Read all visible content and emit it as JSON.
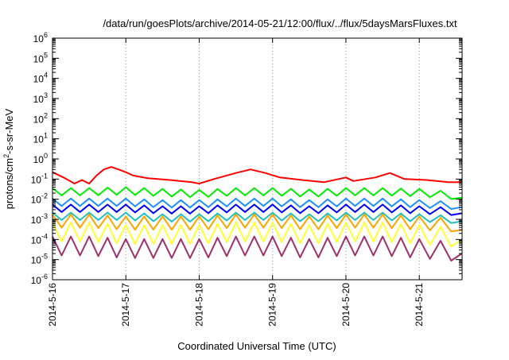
{
  "chart_data": {
    "type": "line",
    "title": "/data/run/goesPlots/archive/2014-05-21/12:00/flux/../flux/5daysMarsFluxes.txt",
    "xlabel": "Coordinated Universal Time (UTC)",
    "ylabel_prefix": "protons/cm",
    "ylabel_sup": "2",
    "ylabel_suffix": "-s-sr-MeV",
    "y_scale": "log",
    "ylim": [
      1e-06,
      1000000.0
    ],
    "y_ticks": [
      {
        "base": "10",
        "exp": "-6",
        "value": -6
      },
      {
        "base": "10",
        "exp": "-5",
        "value": -5
      },
      {
        "base": "10",
        "exp": "-4",
        "value": -4
      },
      {
        "base": "10",
        "exp": "-3",
        "value": -3
      },
      {
        "base": "10",
        "exp": "-2",
        "value": -2
      },
      {
        "base": "10",
        "exp": "-1",
        "value": -1
      },
      {
        "base": "10",
        "exp": "0",
        "value": 0
      },
      {
        "base": "10",
        "exp": "1",
        "value": 1
      },
      {
        "base": "10",
        "exp": "2",
        "value": 2
      },
      {
        "base": "10",
        "exp": "3",
        "value": 3
      },
      {
        "base": "10",
        "exp": "4",
        "value": 4
      },
      {
        "base": "10",
        "exp": "5",
        "value": 5
      },
      {
        "base": "10",
        "exp": "6",
        "value": 6
      }
    ],
    "xlim": [
      "2014-05-16 00:00",
      "2014-05-21 14:00"
    ],
    "x_ticks": [
      {
        "label": "2014-5-16",
        "value": "2014-05-16"
      },
      {
        "label": "2014-5-17",
        "value": "2014-05-17"
      },
      {
        "label": "2014-5-18",
        "value": "2014-05-18"
      },
      {
        "label": "2014-5-19",
        "value": "2014-05-19"
      },
      {
        "label": "2014-5-20",
        "value": "2014-05-20"
      },
      {
        "label": "2014-5-21",
        "value": "2014-05-21"
      }
    ],
    "grid": {
      "x": true,
      "y": false
    },
    "series": [
      {
        "color": "#ff0000",
        "values": [
          [
            0.0,
            0.22
          ],
          [
            0.15,
            0.12
          ],
          [
            0.3,
            0.06
          ],
          [
            0.4,
            0.09
          ],
          [
            0.5,
            0.06
          ],
          [
            0.6,
            0.15
          ],
          [
            0.7,
            0.3
          ],
          [
            0.8,
            0.4
          ],
          [
            0.9,
            0.3
          ],
          [
            1.0,
            0.22
          ],
          [
            1.1,
            0.15
          ],
          [
            1.3,
            0.11
          ],
          [
            1.6,
            0.09
          ],
          [
            1.9,
            0.07
          ],
          [
            2.0,
            0.06
          ],
          [
            2.2,
            0.1
          ],
          [
            2.5,
            0.2
          ],
          [
            2.7,
            0.3
          ],
          [
            2.9,
            0.2
          ],
          [
            3.1,
            0.12
          ],
          [
            3.4,
            0.09
          ],
          [
            3.7,
            0.07
          ],
          [
            3.9,
            0.1
          ],
          [
            4.0,
            0.12
          ],
          [
            4.1,
            0.08
          ],
          [
            4.4,
            0.12
          ],
          [
            4.6,
            0.2
          ],
          [
            4.8,
            0.1
          ],
          [
            5.1,
            0.09
          ],
          [
            5.4,
            0.07
          ],
          [
            5.58,
            0.07
          ]
        ]
      },
      {
        "color": "#00ee00",
        "values": [
          [
            0.0,
            0.02
          ],
          [
            0.5,
            0.02
          ],
          [
            1.0,
            0.022
          ],
          [
            1.5,
            0.018
          ],
          [
            2.0,
            0.016
          ],
          [
            2.5,
            0.02
          ],
          [
            3.0,
            0.02
          ],
          [
            3.5,
            0.017
          ],
          [
            4.0,
            0.02
          ],
          [
            4.5,
            0.02
          ],
          [
            5.0,
            0.018
          ],
          [
            5.58,
            0.012
          ]
        ]
      },
      {
        "color": "#1e90ff",
        "values": [
          [
            0.0,
            0.006
          ],
          [
            0.5,
            0.006
          ],
          [
            1.0,
            0.006
          ],
          [
            1.5,
            0.005
          ],
          [
            2.0,
            0.005
          ],
          [
            2.5,
            0.006
          ],
          [
            3.0,
            0.006
          ],
          [
            3.5,
            0.005
          ],
          [
            4.0,
            0.006
          ],
          [
            4.5,
            0.006
          ],
          [
            5.0,
            0.005
          ],
          [
            5.58,
            0.004
          ]
        ]
      },
      {
        "color": "#0000ff",
        "values": [
          [
            0.0,
            0.003
          ],
          [
            0.5,
            0.003
          ],
          [
            1.0,
            0.003
          ],
          [
            1.5,
            0.0025
          ],
          [
            2.0,
            0.0025
          ],
          [
            2.5,
            0.003
          ],
          [
            3.0,
            0.003
          ],
          [
            3.5,
            0.0025
          ],
          [
            4.0,
            0.003
          ],
          [
            4.5,
            0.003
          ],
          [
            5.0,
            0.0025
          ],
          [
            5.58,
            0.002
          ]
        ]
      },
      {
        "color": "#20c0c0",
        "values": [
          [
            0.0,
            0.0012
          ],
          [
            0.5,
            0.0012
          ],
          [
            1.0,
            0.0012
          ],
          [
            1.5,
            0.001
          ],
          [
            2.0,
            0.001
          ],
          [
            2.5,
            0.0012
          ],
          [
            3.0,
            0.0012
          ],
          [
            3.5,
            0.001
          ],
          [
            4.0,
            0.0012
          ],
          [
            4.5,
            0.0012
          ],
          [
            5.0,
            0.001
          ],
          [
            5.58,
            0.0008
          ]
        ]
      },
      {
        "color": "#ffa500",
        "values": [
          [
            0.0,
            0.0005
          ],
          [
            0.5,
            0.0005
          ],
          [
            1.0,
            0.0004
          ],
          [
            1.5,
            0.0004
          ],
          [
            2.0,
            0.0004
          ],
          [
            2.5,
            0.0005
          ],
          [
            3.0,
            0.0005
          ],
          [
            3.5,
            0.0004
          ],
          [
            4.0,
            0.0005
          ],
          [
            4.5,
            0.0005
          ],
          [
            5.0,
            0.0004
          ],
          [
            5.58,
            0.0003
          ]
        ]
      },
      {
        "color": "#ffff33",
        "values": [
          [
            0.0,
            0.0002
          ],
          [
            0.5,
            0.0002
          ],
          [
            1.0,
            0.00015
          ],
          [
            1.5,
            0.00015
          ],
          [
            2.0,
            0.00015
          ],
          [
            2.5,
            0.0002
          ],
          [
            3.0,
            0.0002
          ],
          [
            3.5,
            0.00015
          ],
          [
            4.0,
            0.0002
          ],
          [
            4.5,
            0.0002
          ],
          [
            5.0,
            0.00015
          ],
          [
            5.58,
            0.0001
          ]
        ]
      },
      {
        "color": "#a0306a",
        "values": [
          [
            0.0,
            4e-05
          ],
          [
            0.5,
            4e-05
          ],
          [
            1.0,
            3e-05
          ],
          [
            1.5,
            3e-05
          ],
          [
            2.0,
            3e-05
          ],
          [
            2.5,
            4e-05
          ],
          [
            3.0,
            4e-05
          ],
          [
            3.5,
            3e-05
          ],
          [
            4.0,
            4e-05
          ],
          [
            4.5,
            4e-05
          ],
          [
            5.0,
            3e-05
          ],
          [
            5.58,
            2e-05
          ]
        ]
      }
    ],
    "x_units_note": ""
  }
}
